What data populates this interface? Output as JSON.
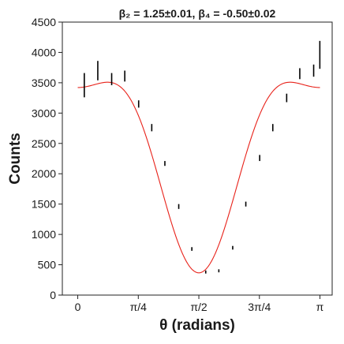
{
  "chart_data": {
    "type": "scatter",
    "title": "β₂ = 1.25±0.01, β₄ = -0.50±0.02",
    "xlabel": "θ (radians)",
    "ylabel": "Counts",
    "xlim": [
      -0.2,
      3.3
    ],
    "ylim": [
      0,
      4500
    ],
    "x_tick_values": [
      0,
      0.7854,
      1.5708,
      2.3562,
      3.1416
    ],
    "x_tick_labels": [
      "0",
      "π/4",
      "π/2",
      "3π/4",
      "π"
    ],
    "y_ticks": [
      0,
      500,
      1000,
      1500,
      2000,
      2500,
      3000,
      3500,
      4000,
      4500
    ],
    "grid": false,
    "legend": "none",
    "series": [
      {
        "kind": "errorbar",
        "color": "#000000",
        "x": [
          0.085,
          0.26,
          0.44,
          0.61,
          0.79,
          0.96,
          1.13,
          1.31,
          1.48,
          1.66,
          1.83,
          2.01,
          2.18,
          2.36,
          2.53,
          2.71,
          2.88,
          3.06
        ],
        "y": [
          3460,
          3700,
          3560,
          3610,
          3150,
          2760,
          2170,
          1460,
          760,
          380,
          400,
          780,
          1500,
          2260,
          2760,
          3250,
          3650,
          3700
        ],
        "yerr": [
          200,
          160,
          100,
          90,
          60,
          60,
          40,
          40,
          30,
          25,
          25,
          30,
          40,
          50,
          60,
          70,
          90,
          100
        ]
      },
      {
        "kind": "single-point",
        "color": "#000000",
        "x": [
          3.14
        ],
        "y": [
          3960
        ],
        "yerr": [
          230
        ]
      },
      {
        "kind": "fit-curve",
        "color": "#e8221a",
        "beta2": 1.25,
        "beta4": -0.5
      }
    ]
  }
}
